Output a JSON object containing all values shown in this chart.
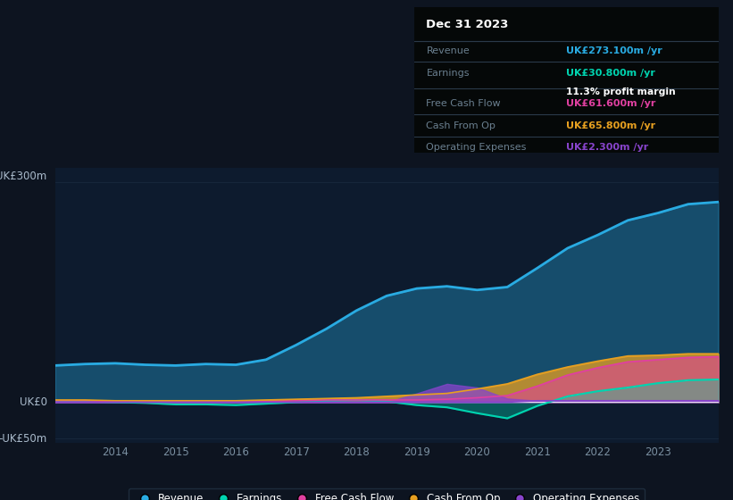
{
  "bg_color": "#0d1420",
  "chart_bg": "#0d1b2e",
  "years": [
    2013.0,
    2013.5,
    2014.0,
    2014.5,
    2015.0,
    2015.5,
    2016.0,
    2016.5,
    2017.0,
    2017.5,
    2018.0,
    2018.5,
    2019.0,
    2019.5,
    2020.0,
    2020.5,
    2021.0,
    2021.5,
    2022.0,
    2022.5,
    2023.0,
    2023.5,
    2024.0
  ],
  "revenue": [
    50,
    52,
    53,
    51,
    50,
    52,
    51,
    58,
    78,
    100,
    125,
    145,
    155,
    158,
    153,
    157,
    183,
    210,
    228,
    248,
    258,
    270,
    273
  ],
  "earnings": [
    2,
    1,
    0,
    -1,
    -3,
    -3,
    -4,
    -2,
    0,
    2,
    3,
    1,
    -4,
    -7,
    -15,
    -22,
    -5,
    8,
    15,
    20,
    26,
    30,
    31
  ],
  "free_cash_flow": [
    2,
    2,
    1,
    0,
    0,
    0,
    0,
    1,
    2,
    3,
    3,
    3,
    3,
    4,
    6,
    9,
    22,
    37,
    47,
    55,
    58,
    61,
    62
  ],
  "cash_from_op": [
    3,
    3,
    2,
    2,
    2,
    2,
    2,
    3,
    4,
    5,
    6,
    8,
    10,
    12,
    18,
    25,
    38,
    48,
    56,
    63,
    64,
    66,
    66
  ],
  "op_expenses_spike": [
    0,
    0,
    0,
    0,
    0,
    0,
    0,
    0,
    0,
    0,
    0,
    0,
    12,
    25,
    20,
    5,
    2,
    2,
    2,
    2,
    2,
    2,
    2
  ],
  "op_expenses_line": [
    0,
    0,
    0,
    0,
    0,
    0,
    0,
    0,
    0,
    0,
    0,
    0,
    0,
    0,
    0,
    0,
    2,
    2,
    2,
    2,
    2,
    2,
    2
  ],
  "revenue_color": "#29abe2",
  "earnings_color": "#00d4b0",
  "fcf_color": "#e040a0",
  "cashop_color": "#e8a020",
  "opex_color": "#8844cc",
  "ylim_min": -55,
  "ylim_max": 320,
  "xlabel_color": "#7a8fa0",
  "ylabel_color": "#aabbcc",
  "grid_color": "#1a2a40",
  "info_box": {
    "title": "Dec 31 2023",
    "rows": [
      {
        "label": "Revenue",
        "value": "UK£273.100m /yr",
        "value_color": "#29abe2",
        "extra": null
      },
      {
        "label": "Earnings",
        "value": "UK£30.800m /yr",
        "value_color": "#00d4b0",
        "extra": "11.3% profit margin"
      },
      {
        "label": "Free Cash Flow",
        "value": "UK£61.600m /yr",
        "value_color": "#e040a0",
        "extra": null
      },
      {
        "label": "Cash From Op",
        "value": "UK£65.800m /yr",
        "value_color": "#e8a020",
        "extra": null
      },
      {
        "label": "Operating Expenses",
        "value": "UK£2.300m /yr",
        "value_color": "#8844cc",
        "extra": null
      }
    ]
  },
  "legend": [
    {
      "label": "Revenue",
      "color": "#29abe2"
    },
    {
      "label": "Earnings",
      "color": "#00d4b0"
    },
    {
      "label": "Free Cash Flow",
      "color": "#e040a0"
    },
    {
      "label": "Cash From Op",
      "color": "#e8a020"
    },
    {
      "label": "Operating Expenses",
      "color": "#8844cc"
    }
  ],
  "xticks": [
    2014,
    2015,
    2016,
    2017,
    2018,
    2019,
    2020,
    2021,
    2022,
    2023
  ]
}
